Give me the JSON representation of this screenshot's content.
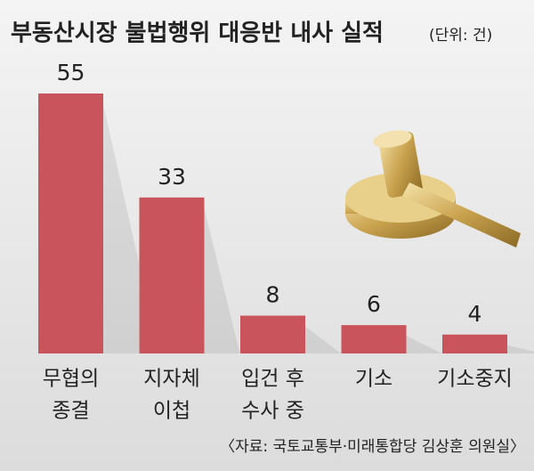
{
  "chart_data": {
    "type": "bar",
    "title": "부동산시장 불법행위 대응반 내사 실적",
    "unit": "(단위: 건)",
    "categories": [
      [
        "무협의",
        "종결"
      ],
      [
        "지자체",
        "이첩"
      ],
      [
        "입건 후",
        "수사 중"
      ],
      [
        "기소"
      ],
      [
        "기소중지"
      ]
    ],
    "values": [
      55,
      33,
      8,
      6,
      4
    ],
    "color": "#c9545c",
    "source": "〈자료: 국토교통부·미래통합당 김상훈 의원실〉"
  }
}
